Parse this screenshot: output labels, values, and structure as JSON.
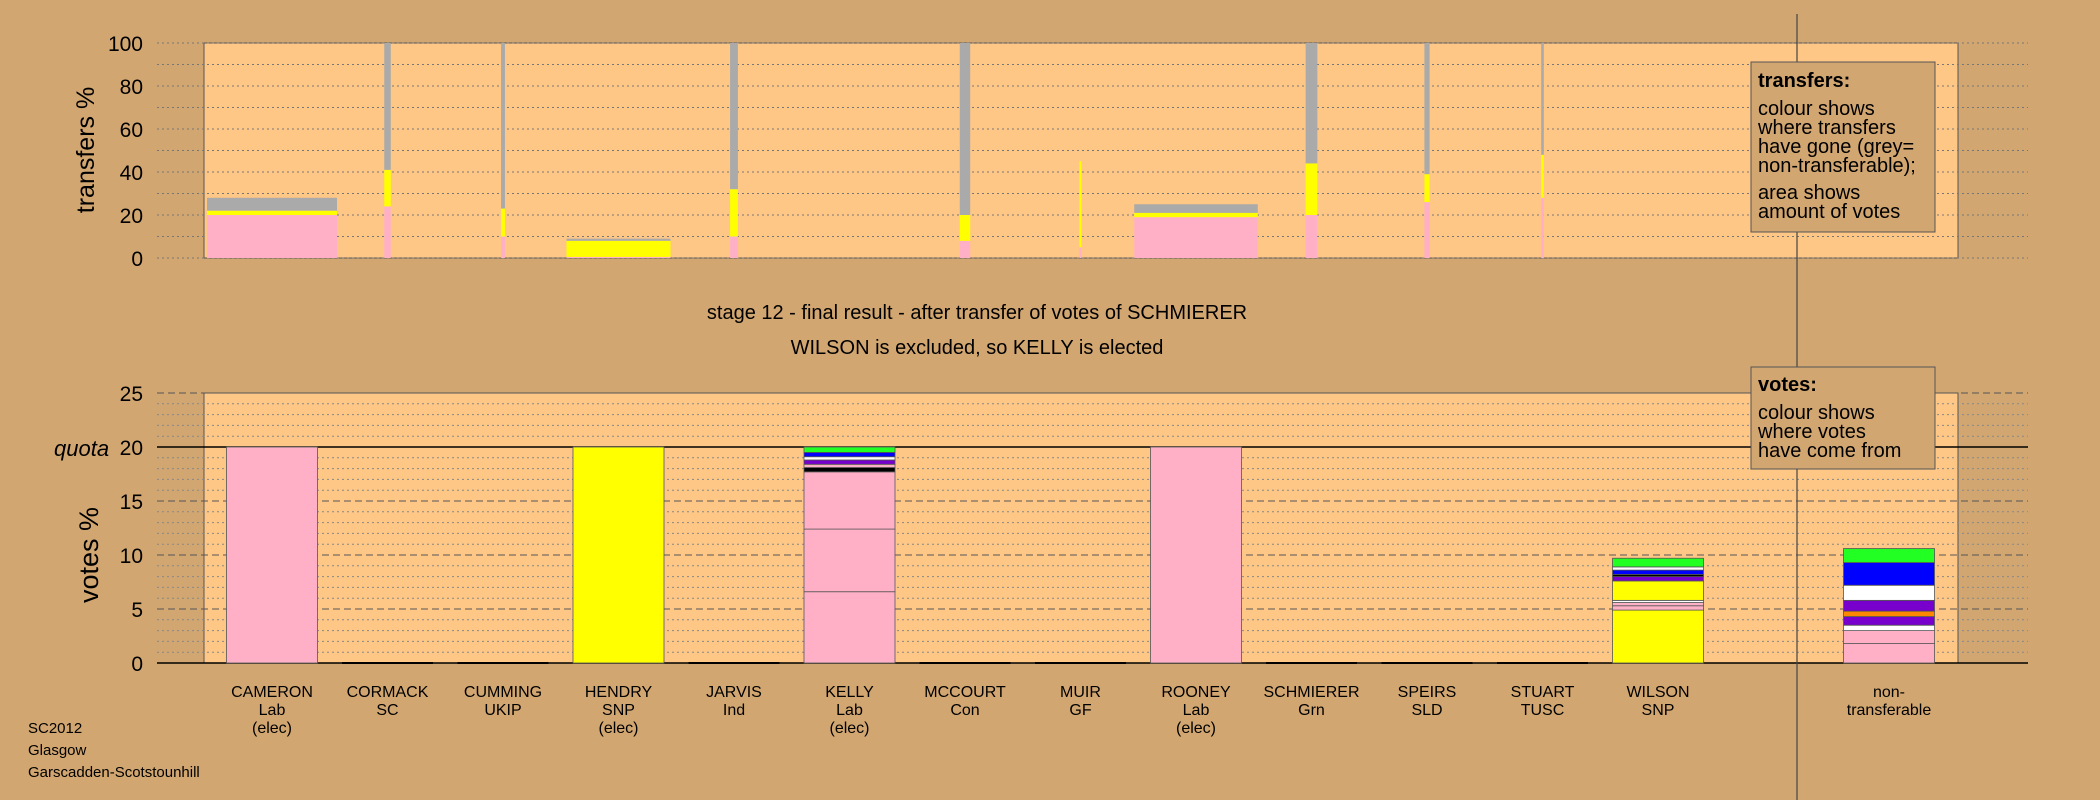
{
  "colors": {
    "background": "#d2a671",
    "plot_bg": "#ffc785",
    "Lab": "#ffb0c7",
    "SNP": "#ffff00",
    "non_transferable": "#aaaaaa",
    "Green": "#22ff22",
    "Blue": "#0000ff",
    "Purple": "#7700cc",
    "White": "#ffffff",
    "Black": "#000000",
    "Orange": "#ff8800",
    "Pink": "#ffb0c7",
    "Yellow": "#ffff00"
  },
  "footer": {
    "line1": "SC2012",
    "line2": "Glasgow",
    "line3": "Garscadden-Scotstounhill"
  },
  "chart_data": [
    {
      "type": "bar",
      "panel": "transfers",
      "ylabel": "transfers %",
      "ylim": [
        0,
        100
      ],
      "yticks": [
        0,
        20,
        40,
        60,
        80,
        100
      ],
      "legend": {
        "title": "transfers:",
        "lines": [
          "colour shows",
          "where transfers",
          "have gone (grey=",
          "non-transferable);",
          "area shows",
          "amount of votes"
        ]
      },
      "columns": [
        {
          "candidate": "CAMERON",
          "width_share": 1.0,
          "segments": [
            {
              "party": "Lab",
              "value": 20
            },
            {
              "party": "SNP",
              "value": 2
            },
            {
              "party": "non_transferable",
              "value": 6
            }
          ]
        },
        {
          "candidate": "CORMACK",
          "width_share": 0.05,
          "segments": [
            {
              "party": "Lab",
              "value": 24
            },
            {
              "party": "SNP",
              "value": 17
            },
            {
              "party": "non_transferable",
              "value": 59
            }
          ]
        },
        {
          "candidate": "CUMMING",
          "width_share": 0.03,
          "segments": [
            {
              "party": "Lab",
              "value": 10
            },
            {
              "party": "SNP",
              "value": 13
            },
            {
              "party": "non_transferable",
              "value": 77
            }
          ]
        },
        {
          "candidate": "HENDRY",
          "width_share": 0.8,
          "segments": [
            {
              "party": "Lab",
              "value": 0.5
            },
            {
              "party": "SNP",
              "value": 7.5
            },
            {
              "party": "non_transferable",
              "value": 1
            }
          ]
        },
        {
          "candidate": "JARVIS",
          "width_share": 0.06,
          "segments": [
            {
              "party": "Lab",
              "value": 10
            },
            {
              "party": "SNP",
              "value": 22
            },
            {
              "party": "non_transferable",
              "value": 68
            }
          ]
        },
        {
          "candidate": "KELLY",
          "width_share": 0.0,
          "segments": []
        },
        {
          "candidate": "MCCOURT",
          "width_share": 0.08,
          "segments": [
            {
              "party": "Lab",
              "value": 8
            },
            {
              "party": "SNP",
              "value": 12
            },
            {
              "party": "non_transferable",
              "value": 80
            }
          ]
        },
        {
          "candidate": "MUIR",
          "width_share": 0.015,
          "segments": [
            {
              "party": "Lab",
              "value": 5
            },
            {
              "party": "SNP",
              "value": 40
            },
            {
              "party": "non_transferable",
              "value": 0
            }
          ]
        },
        {
          "candidate": "ROONEY",
          "width_share": 0.95,
          "segments": [
            {
              "party": "Lab",
              "value": 19
            },
            {
              "party": "SNP",
              "value": 2
            },
            {
              "party": "non_transferable",
              "value": 4
            }
          ]
        },
        {
          "candidate": "SCHMIERER",
          "width_share": 0.09,
          "segments": [
            {
              "party": "Lab",
              "value": 20
            },
            {
              "party": "SNP",
              "value": 24
            },
            {
              "party": "non_transferable",
              "value": 56
            }
          ]
        },
        {
          "candidate": "SPEIRS",
          "width_share": 0.04,
          "segments": [
            {
              "party": "Lab",
              "value": 26
            },
            {
              "party": "SNP",
              "value": 13
            },
            {
              "party": "non_transferable",
              "value": 61
            }
          ]
        },
        {
          "candidate": "STUART",
          "width_share": 0.02,
          "segments": [
            {
              "party": "Lab",
              "value": 28
            },
            {
              "party": "SNP",
              "value": 20
            },
            {
              "party": "non_transferable",
              "value": 52
            }
          ]
        },
        {
          "candidate": "WILSON",
          "width_share": 0.0,
          "segments": []
        }
      ]
    },
    {
      "type": "bar",
      "panel": "votes",
      "title_line1": "stage 12 - final result - after transfer of votes of SCHMIERER",
      "title_line2": "WILSON is excluded, so KELLY is elected",
      "ylabel": "votes %",
      "quota_label": "quota",
      "quota": 20,
      "ylim": [
        0,
        25
      ],
      "yticks": [
        0,
        5,
        10,
        15,
        20,
        25
      ],
      "legend": {
        "title": "votes:",
        "lines": [
          "colour shows",
          "where votes",
          "have come from"
        ]
      },
      "categories": [
        {
          "name": "CAMERON",
          "party": "Lab",
          "note": "(elec)"
        },
        {
          "name": "CORMACK",
          "party": "SC",
          "note": ""
        },
        {
          "name": "CUMMING",
          "party": "UKIP",
          "note": ""
        },
        {
          "name": "HENDRY",
          "party": "SNP",
          "note": "(elec)"
        },
        {
          "name": "JARVIS",
          "party": "Ind",
          "note": ""
        },
        {
          "name": "KELLY",
          "party": "Lab",
          "note": "(elec)"
        },
        {
          "name": "MCCOURT",
          "party": "Con",
          "note": ""
        },
        {
          "name": "MUIR",
          "party": "GF",
          "note": ""
        },
        {
          "name": "ROONEY",
          "party": "Lab",
          "note": "(elec)"
        },
        {
          "name": "SCHMIERER",
          "party": "Grn",
          "note": ""
        },
        {
          "name": "SPEIRS",
          "party": "SLD",
          "note": ""
        },
        {
          "name": "STUART",
          "party": "TUSC",
          "note": ""
        },
        {
          "name": "WILSON",
          "party": "SNP",
          "note": ""
        },
        {
          "name": "non-",
          "party": "transferable",
          "note": ""
        }
      ],
      "bars": [
        {
          "candidate": "CAMERON",
          "segments": [
            {
              "color": "Pink",
              "value": 20
            }
          ]
        },
        {
          "candidate": "CORMACK",
          "segments": []
        },
        {
          "candidate": "CUMMING",
          "segments": []
        },
        {
          "candidate": "HENDRY",
          "segments": [
            {
              "color": "Yellow",
              "value": 20
            }
          ]
        },
        {
          "candidate": "JARVIS",
          "segments": []
        },
        {
          "candidate": "KELLY",
          "segments": [
            {
              "color": "Pink",
              "value": 6.6
            },
            {
              "color": "Pink",
              "value": 5.8
            },
            {
              "color": "Pink",
              "value": 5.3
            },
            {
              "color": "Black",
              "value": 0.4
            },
            {
              "color": "Pink",
              "value": 0.3
            },
            {
              "color": "Purple",
              "value": 0.4
            },
            {
              "color": "White",
              "value": 0.3
            },
            {
              "color": "Blue",
              "value": 0.4
            },
            {
              "color": "Green",
              "value": 0.5
            }
          ]
        },
        {
          "candidate": "MCCOURT",
          "segments": []
        },
        {
          "candidate": "MUIR",
          "segments": []
        },
        {
          "candidate": "ROONEY",
          "segments": [
            {
              "color": "Pink",
              "value": 20
            }
          ]
        },
        {
          "candidate": "SCHMIERER",
          "segments": []
        },
        {
          "candidate": "SPEIRS",
          "segments": []
        },
        {
          "candidate": "STUART",
          "segments": []
        },
        {
          "candidate": "WILSON",
          "segments": [
            {
              "color": "Yellow",
              "value": 4.9
            },
            {
              "color": "Pink",
              "value": 0.4
            },
            {
              "color": "Pink",
              "value": 0.3
            },
            {
              "color": "White",
              "value": 0.2
            },
            {
              "color": "Yellow",
              "value": 1.8
            },
            {
              "color": "Purple",
              "value": 0.4
            },
            {
              "color": "Black",
              "value": 0.2
            },
            {
              "color": "Blue",
              "value": 0.4
            },
            {
              "color": "White",
              "value": 0.3
            },
            {
              "color": "Green",
              "value": 0.8
            }
          ]
        },
        {
          "candidate": "non-transferable",
          "segments": [
            {
              "color": "Pink",
              "value": 1.8
            },
            {
              "color": "Pink",
              "value": 1.2
            },
            {
              "color": "White",
              "value": 0.5
            },
            {
              "color": "Purple",
              "value": 0.8
            },
            {
              "color": "Orange",
              "value": 0.5
            },
            {
              "color": "Purple",
              "value": 1.0
            },
            {
              "color": "White",
              "value": 1.4
            },
            {
              "color": "Blue",
              "value": 2.1
            },
            {
              "color": "Green",
              "value": 1.3
            }
          ]
        }
      ]
    }
  ]
}
